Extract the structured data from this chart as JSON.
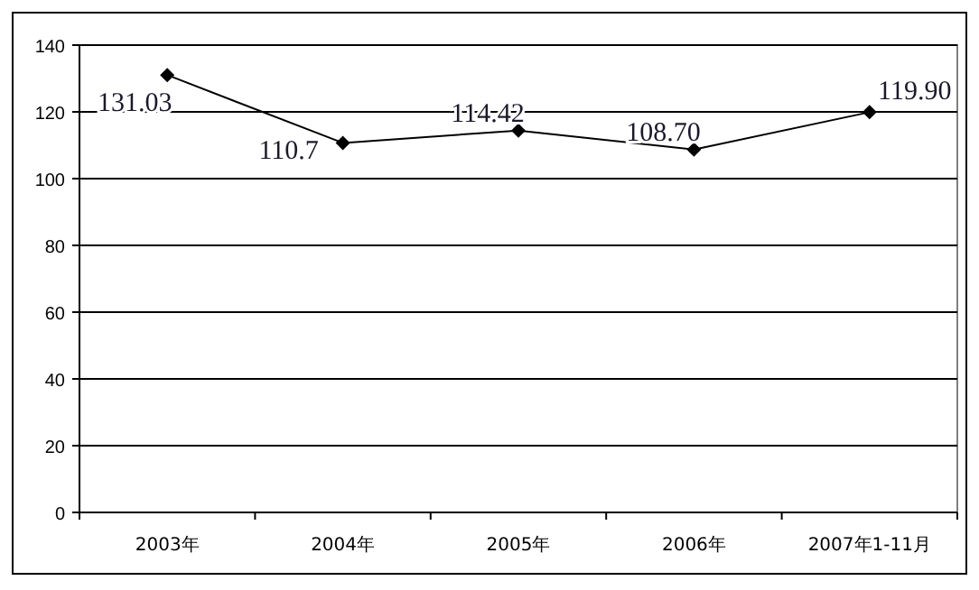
{
  "chart_data": {
    "type": "line",
    "categories": [
      "2003年",
      "2004年",
      "2005年",
      "2006年",
      "2007年1-11月"
    ],
    "values": [
      131.03,
      110.7,
      114.42,
      108.7,
      119.9
    ],
    "value_labels": [
      "131.03",
      "110.7",
      "114.42",
      "108.70",
      "119.90"
    ],
    "color": "#000000",
    "marker": "diamond",
    "ylim": [
      0,
      140
    ],
    "yticks": [
      0,
      20,
      40,
      60,
      80,
      100,
      120,
      140
    ],
    "grid": "y"
  }
}
